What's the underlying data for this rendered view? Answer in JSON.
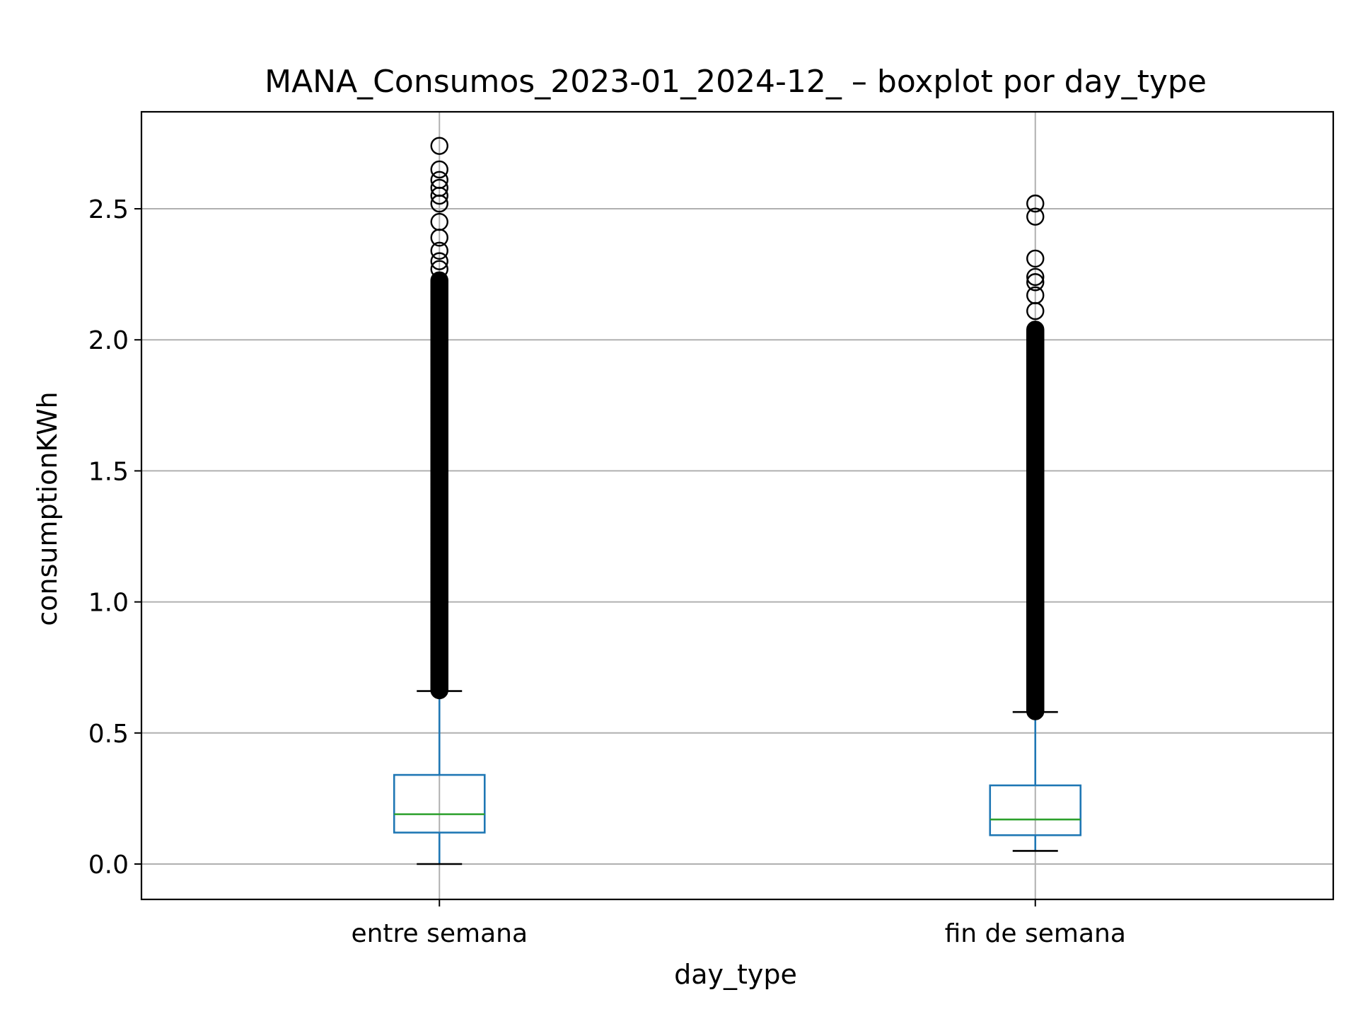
{
  "chart_data": {
    "type": "box",
    "title": "MANA_Consumos_2023-01_2024-12_ – boxplot por day_type",
    "xlabel": "day_type",
    "ylabel": "consumptionKWh",
    "ylim": [
      -0.135,
      2.87
    ],
    "yticks": [
      0.0,
      0.5,
      1.0,
      1.5,
      2.0,
      2.5
    ],
    "ytick_labels": [
      "0.0",
      "0.5",
      "1.0",
      "1.5",
      "2.0",
      "2.5"
    ],
    "grid": true,
    "categories": [
      "entre semana",
      "fin de semana"
    ],
    "boxes": [
      {
        "category": "entre semana",
        "whisker_low": 0.0,
        "q1": 0.12,
        "median": 0.19,
        "q3": 0.34,
        "whisker_high": 0.66,
        "outlier_range": [
          0.66,
          2.23
        ],
        "outliers_sparse": [
          2.27,
          2.3,
          2.34,
          2.39,
          2.45,
          2.52,
          2.55,
          2.58,
          2.61,
          2.65,
          2.74
        ]
      },
      {
        "category": "fin de semana",
        "whisker_low": 0.05,
        "q1": 0.11,
        "median": 0.17,
        "q3": 0.3,
        "whisker_high": 0.58,
        "outlier_range": [
          0.58,
          2.04
        ],
        "outliers_sparse": [
          2.11,
          2.17,
          2.22,
          2.24,
          2.31,
          2.47,
          2.52
        ]
      }
    ],
    "colors": {
      "box": "#1f77b4",
      "median": "#2ca02c",
      "whisker_cap": "#000000",
      "outlier": "#000000",
      "grid": "#b0b0b0"
    }
  }
}
